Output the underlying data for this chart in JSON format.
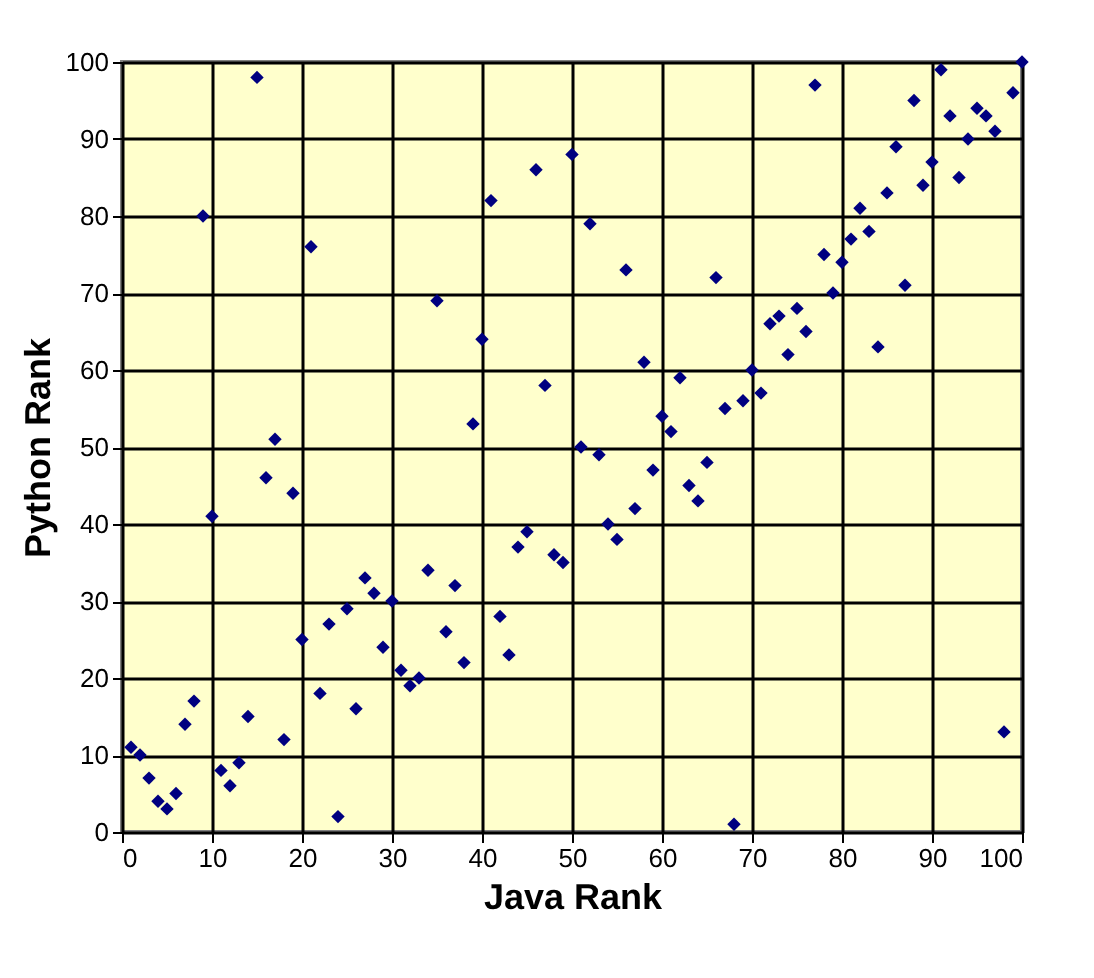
{
  "chart_data": {
    "type": "scatter",
    "xlabel": "Java Rank",
    "ylabel": "Python Rank",
    "x": [
      1,
      2,
      3,
      4,
      5,
      6,
      7,
      8,
      9,
      10,
      11,
      12,
      13,
      14,
      15,
      16,
      17,
      18,
      19,
      20,
      21,
      22,
      23,
      24,
      25,
      26,
      27,
      28,
      29,
      30,
      31,
      32,
      33,
      34,
      35,
      36,
      37,
      38,
      39,
      40,
      41,
      42,
      43,
      44,
      45,
      46,
      47,
      48,
      49,
      50,
      51,
      52,
      53,
      54,
      55,
      56,
      57,
      58,
      59,
      60,
      61,
      62,
      63,
      64,
      65,
      66,
      67,
      68,
      69,
      70,
      71,
      72,
      73,
      74,
      75,
      76,
      77,
      78,
      79,
      80,
      81,
      82,
      83,
      84,
      85,
      86,
      87,
      88,
      89,
      90,
      91,
      92,
      93,
      94,
      95,
      96,
      97,
      98,
      99,
      100
    ],
    "series": [
      {
        "color": "#000080",
        "values": [
          11,
          10,
          7,
          4,
          3,
          5,
          14,
          17,
          80,
          41,
          8,
          6,
          9,
          15,
          98,
          46,
          51,
          12,
          44,
          25,
          76,
          18,
          27,
          2,
          29,
          16,
          33,
          31,
          24,
          30,
          21,
          19,
          20,
          34,
          69,
          26,
          32,
          22,
          53,
          64,
          82,
          28,
          23,
          37,
          39,
          86,
          58,
          36,
          35,
          88,
          50,
          79,
          49,
          40,
          38,
          73,
          42,
          61,
          47,
          54,
          52,
          59,
          45,
          43,
          48,
          72,
          55,
          1,
          56,
          60,
          57,
          66,
          67,
          62,
          68,
          65,
          97,
          75,
          70,
          74,
          77,
          81,
          78,
          63,
          83,
          89,
          71,
          95,
          84,
          87,
          99,
          93,
          85,
          90,
          94,
          93,
          91,
          13,
          96,
          100
        ]
      }
    ],
    "xlim": [
      0,
      100
    ],
    "ylim": [
      0,
      100
    ],
    "xticks": [
      0,
      10,
      20,
      30,
      40,
      50,
      60,
      70,
      80,
      90,
      100
    ],
    "yticks": [
      0,
      10,
      20,
      30,
      40,
      50,
      60,
      70,
      80,
      90,
      100
    ],
    "grid": true,
    "marker": "diamond"
  }
}
